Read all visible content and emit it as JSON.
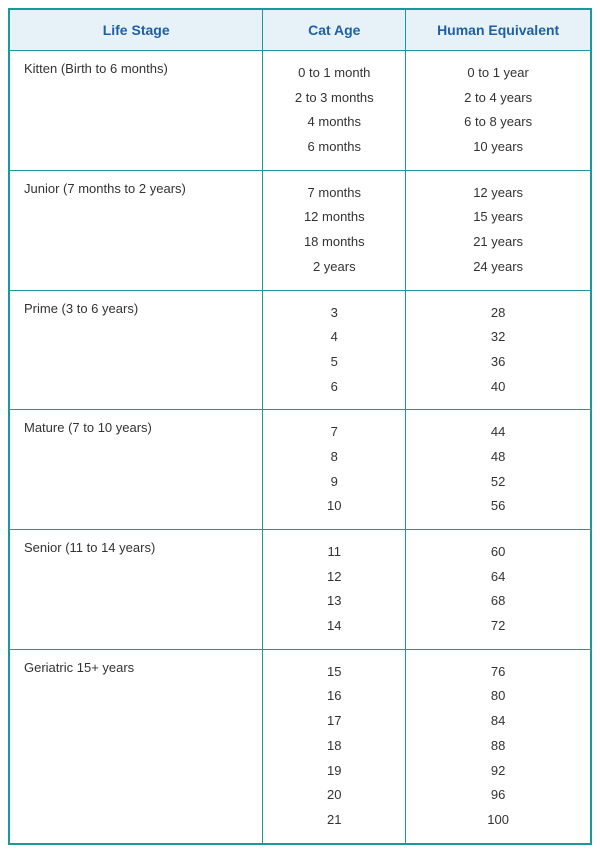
{
  "table": {
    "columns": [
      "Life Stage",
      "Cat Age",
      "Human Equivalent"
    ],
    "header_bg": "#e6f2f7",
    "header_color": "#1e5fa8",
    "border_color": "#1a9999",
    "text_color": "#333333",
    "rows": [
      {
        "stage": "Kitten (Birth to 6 months)",
        "cat_ages": [
          "0 to 1 month",
          "2 to 3 months",
          "4 months",
          "6 months"
        ],
        "human_eqs": [
          "0 to 1 year",
          "2 to 4 years",
          "6 to 8 years",
          "10 years"
        ]
      },
      {
        "stage": "Junior (7 months to 2 years)",
        "cat_ages": [
          "7 months",
          "12 months",
          "18 months",
          "2 years"
        ],
        "human_eqs": [
          "12 years",
          "15 years",
          "21 years",
          "24 years"
        ]
      },
      {
        "stage": "Prime (3 to 6 years)",
        "cat_ages": [
          "3",
          "4",
          "5",
          "6"
        ],
        "human_eqs": [
          "28",
          "32",
          "36",
          "40"
        ]
      },
      {
        "stage": "Mature (7 to 10 years)",
        "cat_ages": [
          "7",
          "8",
          "9",
          "10"
        ],
        "human_eqs": [
          "44",
          "48",
          "52",
          "56"
        ]
      },
      {
        "stage": "Senior (11 to 14 years)",
        "cat_ages": [
          "11",
          "12",
          "13",
          "14"
        ],
        "human_eqs": [
          "60",
          "64",
          "68",
          "72"
        ]
      },
      {
        "stage": "Geriatric 15+ years",
        "cat_ages": [
          "15",
          "16",
          "17",
          "18",
          "19",
          "20",
          "21"
        ],
        "human_eqs": [
          "76",
          "80",
          "84",
          "88",
          "92",
          "96",
          "100"
        ]
      }
    ]
  }
}
